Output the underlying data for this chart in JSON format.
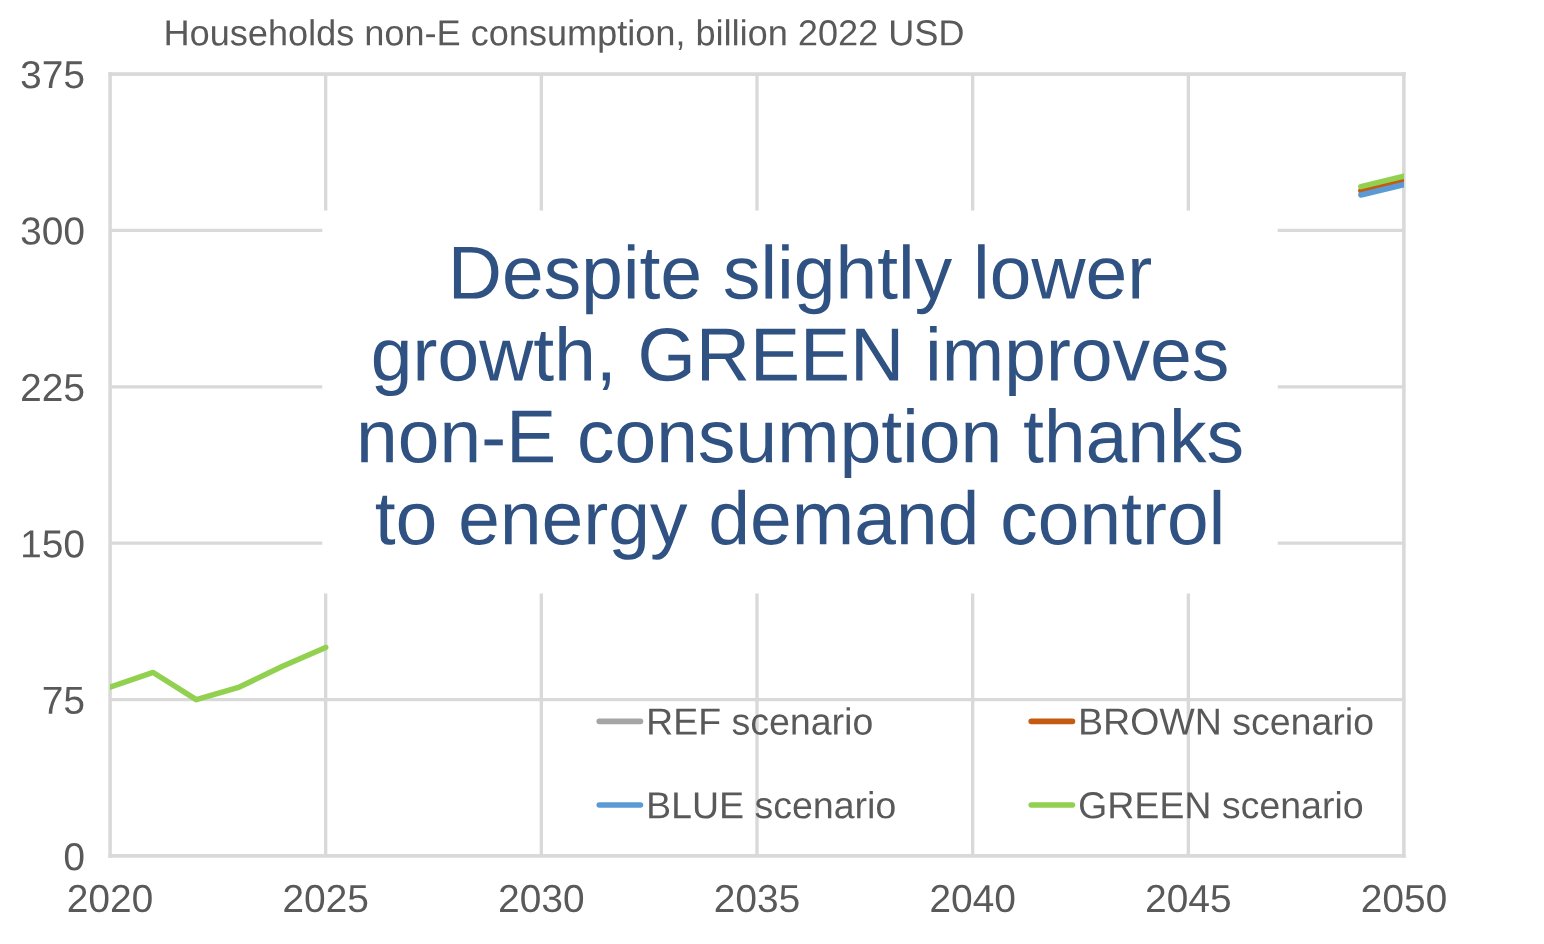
{
  "chart_data": {
    "type": "line",
    "title": "Households non-E consumption, billion 2022 USD",
    "x": [
      2020,
      2021,
      2022,
      2023,
      2024,
      2025,
      2026,
      2027,
      2028,
      2029,
      2030,
      2031,
      2032,
      2033,
      2034,
      2035,
      2036,
      2037,
      2038,
      2039,
      2040,
      2041,
      2042,
      2043,
      2044,
      2045,
      2046,
      2047,
      2048,
      2049,
      2050
    ],
    "series": [
      {
        "name": "REF scenario",
        "color": "#a5a5a5",
        "values": [
          null,
          null,
          null,
          null,
          null,
          null,
          null,
          null,
          null,
          null,
          null,
          null,
          null,
          null,
          null,
          null,
          null,
          null,
          null,
          null,
          null,
          null,
          null,
          null,
          null,
          null,
          null,
          null,
          null,
          null,
          null
        ]
      },
      {
        "name": "BROWN scenario",
        "color": "#c55a11",
        "values": [
          null,
          null,
          null,
          null,
          null,
          null,
          null,
          null,
          null,
          null,
          null,
          null,
          null,
          null,
          null,
          null,
          null,
          null,
          null,
          null,
          null,
          null,
          null,
          null,
          null,
          null,
          null,
          null,
          null,
          319,
          324
        ]
      },
      {
        "name": "BLUE scenario",
        "color": "#5b9bd5",
        "values": [
          null,
          null,
          null,
          null,
          null,
          null,
          null,
          null,
          null,
          null,
          null,
          null,
          null,
          null,
          null,
          null,
          null,
          null,
          null,
          null,
          null,
          null,
          null,
          null,
          null,
          null,
          null,
          null,
          null,
          317,
          322
        ]
      },
      {
        "name": "GREEN scenario",
        "color": "#92d050",
        "values": [
          81,
          88,
          75,
          81,
          91,
          100,
          null,
          null,
          null,
          null,
          null,
          null,
          null,
          null,
          null,
          null,
          null,
          null,
          null,
          null,
          null,
          null,
          null,
          null,
          null,
          null,
          null,
          null,
          null,
          321,
          326
        ]
      }
    ],
    "xlim": [
      2020,
      2050
    ],
    "xticks": [
      2020,
      2025,
      2030,
      2035,
      2040,
      2045,
      2050
    ],
    "ylim": [
      0,
      375
    ],
    "yticks": [
      0,
      75,
      150,
      225,
      300,
      375
    ],
    "grid": true,
    "legend": "bottom right",
    "annotations": [
      "Despite slightly lower\ngrowth, GREEN improves\nnon-E consumption thanks\nto energy demand control"
    ]
  }
}
